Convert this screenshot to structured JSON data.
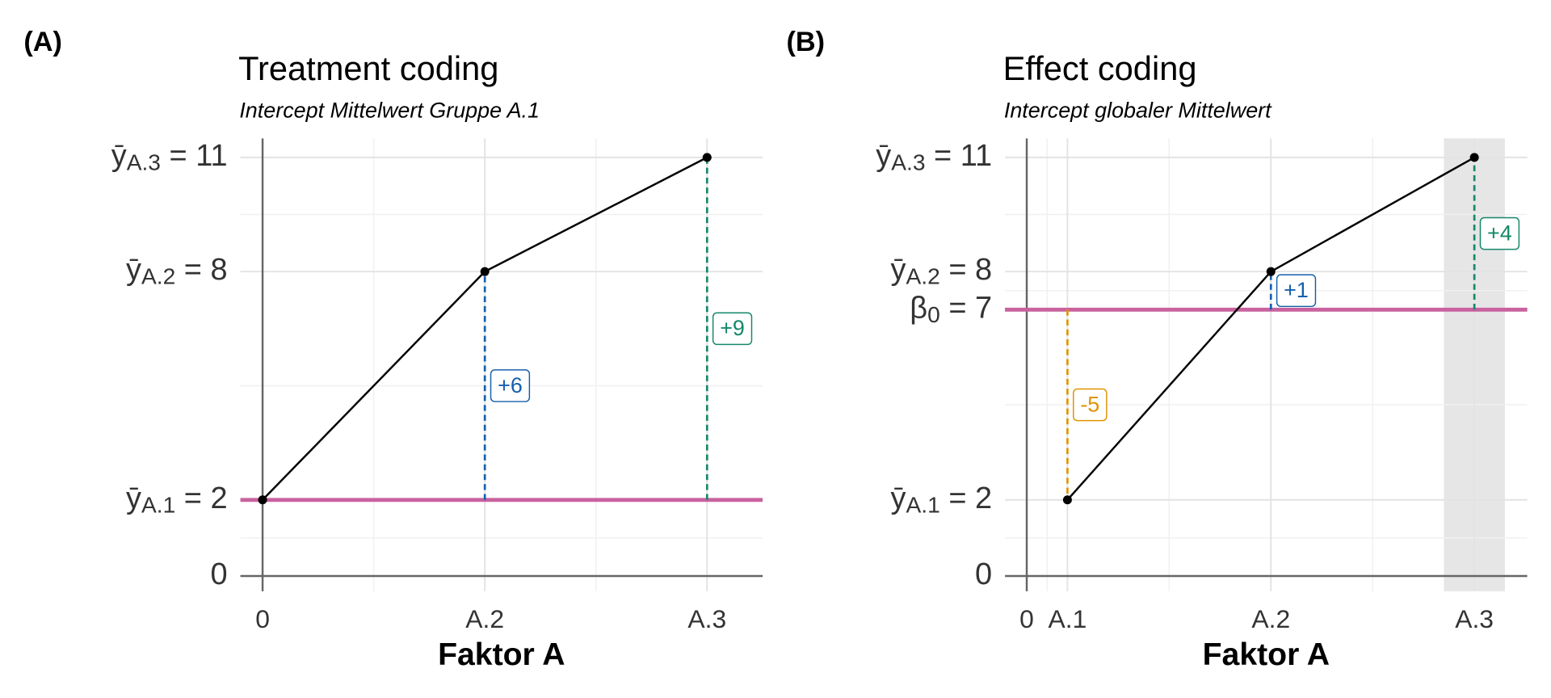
{
  "chart_data": [
    {
      "type": "line",
      "panel_label": "(A)",
      "title": "Treatment coding",
      "subtitle": "Intercept Mittelwert Gruppe A.1",
      "x_label": "Faktor A",
      "x": [
        0,
        1,
        2
      ],
      "values": [
        2,
        8,
        11
      ],
      "color": "#000000",
      "xlim": [
        -0.1,
        2.25
      ],
      "ylim": [
        -0.4,
        11.5
      ],
      "xticks": [
        0,
        {
          "value": 1,
          "label": "A.2"
        },
        {
          "value": 2,
          "label": "A.3"
        }
      ],
      "yticks": [
        0,
        {
          "value": 2,
          "label": "ȳA.1 = 2"
        },
        {
          "value": 8,
          "label": "ȳA.2 = 8"
        },
        {
          "value": 11,
          "label": "ȳA.3 = 11"
        }
      ],
      "intercept": {
        "value": 2,
        "color": "#c9629f"
      },
      "differences": [
        {
          "x": 1,
          "from": 2,
          "value": 6,
          "value_label": "+6",
          "color": "#1560ab"
        },
        {
          "x": 2,
          "from": 2,
          "value": 9,
          "value_label": "+9",
          "color": "#16886a"
        }
      ],
      "grid": true,
      "minor_grid": true
    },
    {
      "type": "line",
      "panel_label": "(B)",
      "title": "Effect coding",
      "subtitle": "Intercept globaler Mittelwert",
      "x_label": "Faktor A",
      "x": [
        0.2,
        1.2,
        2.2
      ],
      "values": [
        2,
        8,
        11
      ],
      "color": "#000000",
      "xlim": [
        -0.107,
        2.46
      ],
      "ylim": [
        -0.4,
        11.5
      ],
      "xticks": [
        0,
        {
          "value": 0.2,
          "label": "A.1"
        },
        {
          "value": 1.2,
          "label": "A.2"
        },
        {
          "value": 2.2,
          "label": "A.3"
        }
      ],
      "yticks": [
        0,
        {
          "value": 2,
          "label": "ȳA.1 = 2"
        },
        {
          "value": 7,
          "label": "β0 = 7"
        },
        {
          "value": 8,
          "label": "ȳA.2 = 8"
        },
        {
          "value": 11,
          "label": "ȳA.3 = 11"
        }
      ],
      "intercept": {
        "value": 7,
        "color": "#c9629f"
      },
      "shaded_x": [
        2.05,
        2.35
      ],
      "differences": [
        {
          "x": 0.2,
          "from": 7,
          "value": -5,
          "value_label": "-5",
          "color": "#e09400"
        },
        {
          "x": 1.2,
          "from": 7,
          "value": 1,
          "value_label": "+1",
          "color": "#1560ab"
        },
        {
          "x": 2.2,
          "from": 7,
          "value": 4,
          "value_label": "+4",
          "color": "#16886a"
        }
      ],
      "grid": true,
      "minor_grid": true
    }
  ]
}
